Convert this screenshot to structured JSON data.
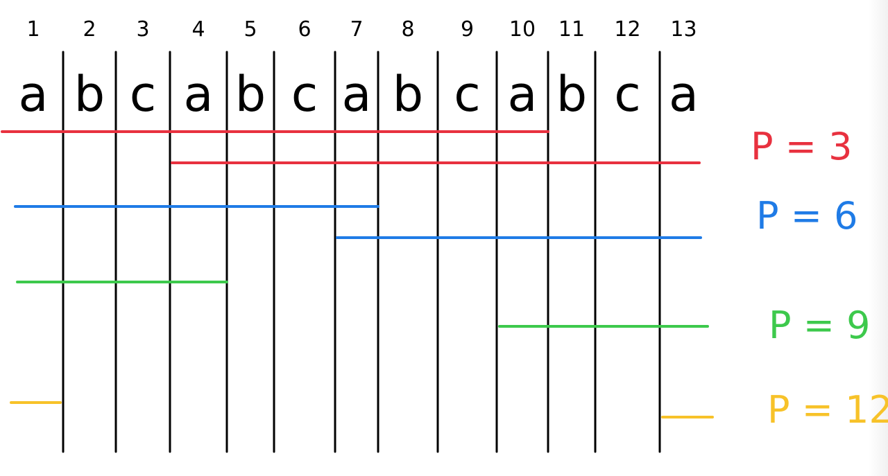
{
  "columns": {
    "numbers": [
      "1",
      "2",
      "3",
      "4",
      "5",
      "6",
      "7",
      "8",
      "9",
      "10",
      "11",
      "12",
      "13"
    ],
    "letters": [
      "a",
      "b",
      "c",
      "a",
      "b",
      "c",
      "a",
      "b",
      "c",
      "a",
      "b",
      "c",
      "a"
    ]
  },
  "groups": [
    {
      "label": "P = 3",
      "color": "#e8313f",
      "segments": [
        {
          "from": 1,
          "to": 10
        },
        {
          "from": 4,
          "to": 13
        }
      ]
    },
    {
      "label": "P = 6",
      "color": "#1f7be6",
      "segments": [
        {
          "from": 1,
          "to": 7
        },
        {
          "from": 7,
          "to": 13
        }
      ]
    },
    {
      "label": "P = 9",
      "color": "#3dc94c",
      "segments": [
        {
          "from": 1,
          "to": 4
        },
        {
          "from": 10,
          "to": 13
        }
      ]
    },
    {
      "label": "P = 12",
      "color": "#f7c229",
      "segments": [
        {
          "from": 1,
          "to": 1
        },
        {
          "from": 13,
          "to": 13
        }
      ]
    }
  ]
}
